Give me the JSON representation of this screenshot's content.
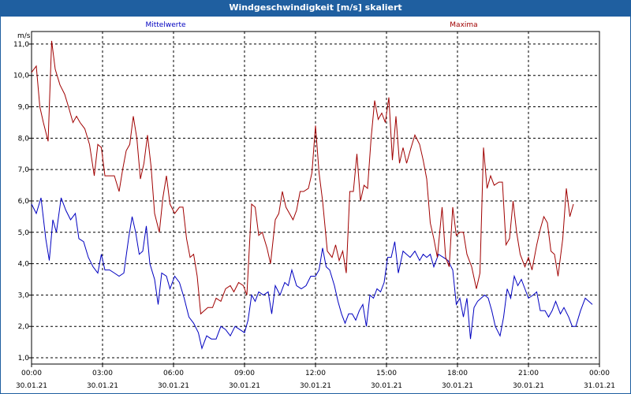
{
  "header": {
    "title": "Windgeschwindigkeit [m/s] skaliert"
  },
  "chart_data": {
    "type": "line",
    "title": "Windgeschwindigkeit [m/s] skaliert",
    "ylabel": "m/s",
    "ylim": [
      0.8,
      11.4
    ],
    "xlim": [
      0,
      24
    ],
    "grid": true,
    "colors": {
      "Mittelwerte": "#0000c0",
      "Maxima": "#a00000"
    },
    "yticks": [
      "1,0",
      "2,0",
      "3,0",
      "4,0",
      "5,0",
      "6,0",
      "7,0",
      "8,0",
      "9,0",
      "10,0",
      "11,0"
    ],
    "xticks": [
      {
        "time": "00:00",
        "date": "30.01.21"
      },
      {
        "time": "03:00",
        "date": "30.01.21"
      },
      {
        "time": "06:00",
        "date": "30.01.21"
      },
      {
        "time": "09:00",
        "date": "30.01.21"
      },
      {
        "time": "12:00",
        "date": "30.01.21"
      },
      {
        "time": "15:00",
        "date": "30.01.21"
      },
      {
        "time": "18:00",
        "date": "30.01.21"
      },
      {
        "time": "21:00",
        "date": "30.01.21"
      },
      {
        "time": "00:00",
        "date": "31.01.21"
      }
    ],
    "series": [
      {
        "name": "Mittelwerte",
        "points": [
          [
            0,
            5.9
          ],
          [
            0.2,
            5.6
          ],
          [
            0.4,
            6.1
          ],
          [
            0.6,
            4.8
          ],
          [
            0.75,
            4.1
          ],
          [
            0.9,
            5.4
          ],
          [
            1.05,
            5.0
          ],
          [
            1.25,
            6.1
          ],
          [
            1.45,
            5.7
          ],
          [
            1.65,
            5.4
          ],
          [
            1.85,
            5.6
          ],
          [
            2.0,
            4.8
          ],
          [
            2.2,
            4.7
          ],
          [
            2.4,
            4.2
          ],
          [
            2.6,
            3.9
          ],
          [
            2.8,
            3.7
          ],
          [
            2.95,
            4.3
          ],
          [
            3.1,
            3.8
          ],
          [
            3.3,
            3.8
          ],
          [
            3.5,
            3.7
          ],
          [
            3.7,
            3.6
          ],
          [
            3.9,
            3.7
          ],
          [
            4.1,
            4.8
          ],
          [
            4.25,
            5.5
          ],
          [
            4.4,
            5.0
          ],
          [
            4.55,
            4.3
          ],
          [
            4.7,
            4.4
          ],
          [
            4.85,
            5.2
          ],
          [
            5.0,
            4.0
          ],
          [
            5.2,
            3.5
          ],
          [
            5.35,
            2.7
          ],
          [
            5.5,
            3.7
          ],
          [
            5.7,
            3.6
          ],
          [
            5.85,
            3.2
          ],
          [
            6.05,
            3.6
          ],
          [
            6.25,
            3.4
          ],
          [
            6.45,
            2.9
          ],
          [
            6.65,
            2.3
          ],
          [
            6.85,
            2.1
          ],
          [
            7.05,
            1.8
          ],
          [
            7.2,
            1.3
          ],
          [
            7.4,
            1.7
          ],
          [
            7.6,
            1.6
          ],
          [
            7.8,
            1.6
          ],
          [
            8.0,
            2.0
          ],
          [
            8.2,
            1.9
          ],
          [
            8.4,
            1.7
          ],
          [
            8.6,
            2.0
          ],
          [
            8.8,
            1.9
          ],
          [
            9.0,
            1.8
          ],
          [
            9.15,
            2.2
          ],
          [
            9.3,
            3.0
          ],
          [
            9.45,
            2.8
          ],
          [
            9.6,
            3.1
          ],
          [
            9.8,
            3.0
          ],
          [
            10.0,
            3.1
          ],
          [
            10.15,
            2.4
          ],
          [
            10.3,
            3.3
          ],
          [
            10.5,
            3.0
          ],
          [
            10.7,
            3.4
          ],
          [
            10.85,
            3.3
          ],
          [
            11.0,
            3.8
          ],
          [
            11.2,
            3.3
          ],
          [
            11.4,
            3.2
          ],
          [
            11.6,
            3.3
          ],
          [
            11.8,
            3.6
          ],
          [
            12.0,
            3.6
          ],
          [
            12.15,
            3.8
          ],
          [
            12.3,
            4.5
          ],
          [
            12.45,
            3.9
          ],
          [
            12.6,
            3.8
          ],
          [
            12.8,
            3.3
          ],
          [
            12.95,
            2.8
          ],
          [
            13.1,
            2.4
          ],
          [
            13.25,
            2.1
          ],
          [
            13.4,
            2.4
          ],
          [
            13.55,
            2.4
          ],
          [
            13.7,
            2.2
          ],
          [
            13.85,
            2.5
          ],
          [
            14.0,
            2.7
          ],
          [
            14.15,
            2.0
          ],
          [
            14.3,
            3.0
          ],
          [
            14.45,
            2.9
          ],
          [
            14.6,
            3.2
          ],
          [
            14.75,
            3.1
          ],
          [
            14.9,
            3.4
          ],
          [
            15.05,
            4.2
          ],
          [
            15.2,
            4.2
          ],
          [
            15.35,
            4.7
          ],
          [
            15.5,
            3.7
          ],
          [
            15.7,
            4.4
          ],
          [
            15.85,
            4.3
          ],
          [
            16.0,
            4.2
          ],
          [
            16.2,
            4.4
          ],
          [
            16.4,
            4.1
          ],
          [
            16.55,
            4.3
          ],
          [
            16.7,
            4.2
          ],
          [
            16.85,
            4.3
          ],
          [
            17.0,
            3.9
          ],
          [
            17.2,
            4.3
          ],
          [
            17.4,
            4.2
          ],
          [
            17.6,
            4.1
          ],
          [
            17.8,
            3.8
          ],
          [
            17.95,
            2.7
          ],
          [
            18.1,
            2.9
          ],
          [
            18.25,
            2.3
          ],
          [
            18.4,
            2.9
          ],
          [
            18.55,
            1.6
          ],
          [
            18.7,
            2.6
          ],
          [
            18.85,
            2.8
          ],
          [
            19.0,
            2.9
          ],
          [
            19.15,
            3.0
          ],
          [
            19.3,
            2.9
          ],
          [
            19.45,
            2.5
          ],
          [
            19.6,
            2.0
          ],
          [
            19.8,
            1.7
          ],
          [
            19.95,
            2.3
          ],
          [
            20.1,
            3.2
          ],
          [
            20.25,
            2.9
          ],
          [
            20.4,
            3.6
          ],
          [
            20.55,
            3.3
          ],
          [
            20.7,
            3.5
          ],
          [
            20.85,
            3.2
          ],
          [
            21.0,
            2.9
          ],
          [
            21.2,
            3.0
          ],
          [
            21.35,
            3.1
          ],
          [
            21.5,
            2.5
          ],
          [
            21.7,
            2.5
          ],
          [
            21.85,
            2.3
          ],
          [
            22.0,
            2.5
          ],
          [
            22.15,
            2.8
          ],
          [
            22.35,
            2.4
          ],
          [
            22.5,
            2.6
          ],
          [
            22.7,
            2.3
          ],
          [
            22.85,
            2.0
          ],
          [
            23.0,
            2.0
          ],
          [
            23.2,
            2.5
          ],
          [
            23.4,
            2.9
          ],
          [
            23.55,
            2.8
          ],
          [
            23.7,
            2.7
          ]
        ]
      },
      {
        "name": "Maxima",
        "points": [
          [
            0,
            10.1
          ],
          [
            0.2,
            10.3
          ],
          [
            0.35,
            9.0
          ],
          [
            0.5,
            8.5
          ],
          [
            0.7,
            7.9
          ],
          [
            0.85,
            11.1
          ],
          [
            1.0,
            10.2
          ],
          [
            1.2,
            9.7
          ],
          [
            1.4,
            9.4
          ],
          [
            1.6,
            8.9
          ],
          [
            1.75,
            8.5
          ],
          [
            1.9,
            8.7
          ],
          [
            2.05,
            8.5
          ],
          [
            2.25,
            8.3
          ],
          [
            2.45,
            7.8
          ],
          [
            2.65,
            6.8
          ],
          [
            2.8,
            7.8
          ],
          [
            2.95,
            7.7
          ],
          [
            3.1,
            6.8
          ],
          [
            3.3,
            6.8
          ],
          [
            3.5,
            6.8
          ],
          [
            3.7,
            6.3
          ],
          [
            3.85,
            7.0
          ],
          [
            4.0,
            7.6
          ],
          [
            4.15,
            7.8
          ],
          [
            4.3,
            8.7
          ],
          [
            4.45,
            8.0
          ],
          [
            4.6,
            6.7
          ],
          [
            4.75,
            7.2
          ],
          [
            4.9,
            8.1
          ],
          [
            5.05,
            7.1
          ],
          [
            5.2,
            5.6
          ],
          [
            5.4,
            5.0
          ],
          [
            5.55,
            6.1
          ],
          [
            5.7,
            6.8
          ],
          [
            5.85,
            5.9
          ],
          [
            6.05,
            5.6
          ],
          [
            6.25,
            5.8
          ],
          [
            6.4,
            5.8
          ],
          [
            6.55,
            4.8
          ],
          [
            6.7,
            4.2
          ],
          [
            6.85,
            4.3
          ],
          [
            7.0,
            3.6
          ],
          [
            7.15,
            2.4
          ],
          [
            7.3,
            2.5
          ],
          [
            7.45,
            2.6
          ],
          [
            7.65,
            2.6
          ],
          [
            7.8,
            2.9
          ],
          [
            8.0,
            2.8
          ],
          [
            8.2,
            3.2
          ],
          [
            8.4,
            3.3
          ],
          [
            8.55,
            3.1
          ],
          [
            8.75,
            3.4
          ],
          [
            8.95,
            3.3
          ],
          [
            9.1,
            3.0
          ],
          [
            9.3,
            5.9
          ],
          [
            9.45,
            5.8
          ],
          [
            9.6,
            4.9
          ],
          [
            9.75,
            5.0
          ],
          [
            9.95,
            4.5
          ],
          [
            10.1,
            4.0
          ],
          [
            10.3,
            5.4
          ],
          [
            10.45,
            5.6
          ],
          [
            10.6,
            6.3
          ],
          [
            10.75,
            5.8
          ],
          [
            10.9,
            5.6
          ],
          [
            11.05,
            5.4
          ],
          [
            11.2,
            5.7
          ],
          [
            11.35,
            6.3
          ],
          [
            11.5,
            6.3
          ],
          [
            11.7,
            6.4
          ],
          [
            11.85,
            6.9
          ],
          [
            12.0,
            8.4
          ],
          [
            12.15,
            6.9
          ],
          [
            12.3,
            6.0
          ],
          [
            12.5,
            4.4
          ],
          [
            12.7,
            4.2
          ],
          [
            12.85,
            4.6
          ],
          [
            13.0,
            4.1
          ],
          [
            13.15,
            4.4
          ],
          [
            13.3,
            3.7
          ],
          [
            13.45,
            6.3
          ],
          [
            13.6,
            6.3
          ],
          [
            13.75,
            7.5
          ],
          [
            13.9,
            6.0
          ],
          [
            14.05,
            6.5
          ],
          [
            14.2,
            6.4
          ],
          [
            14.35,
            8.0
          ],
          [
            14.5,
            9.2
          ],
          [
            14.65,
            8.6
          ],
          [
            14.8,
            8.8
          ],
          [
            14.95,
            8.5
          ],
          [
            15.1,
            9.3
          ],
          [
            15.25,
            7.3
          ],
          [
            15.4,
            8.7
          ],
          [
            15.55,
            7.2
          ],
          [
            15.7,
            7.7
          ],
          [
            15.85,
            7.2
          ],
          [
            16.0,
            7.6
          ],
          [
            16.2,
            8.1
          ],
          [
            16.4,
            7.8
          ],
          [
            16.55,
            7.3
          ],
          [
            16.7,
            6.7
          ],
          [
            16.85,
            5.3
          ],
          [
            17.0,
            4.8
          ],
          [
            17.15,
            4.2
          ],
          [
            17.35,
            5.8
          ],
          [
            17.5,
            4.2
          ],
          [
            17.65,
            3.9
          ],
          [
            17.8,
            5.8
          ],
          [
            17.95,
            4.9
          ],
          [
            18.1,
            5.0
          ],
          [
            18.25,
            5.0
          ],
          [
            18.4,
            4.3
          ],
          [
            18.6,
            3.9
          ],
          [
            18.8,
            3.2
          ],
          [
            18.95,
            3.7
          ],
          [
            19.1,
            7.7
          ],
          [
            19.25,
            6.4
          ],
          [
            19.4,
            6.8
          ],
          [
            19.55,
            6.5
          ],
          [
            19.75,
            6.6
          ],
          [
            19.9,
            6.6
          ],
          [
            20.05,
            4.6
          ],
          [
            20.2,
            4.8
          ],
          [
            20.35,
            6.0
          ],
          [
            20.5,
            5.0
          ],
          [
            20.65,
            4.3
          ],
          [
            20.85,
            3.9
          ],
          [
            21.0,
            4.2
          ],
          [
            21.15,
            3.8
          ],
          [
            21.35,
            4.6
          ],
          [
            21.5,
            5.1
          ],
          [
            21.65,
            5.5
          ],
          [
            21.8,
            5.3
          ],
          [
            21.95,
            4.4
          ],
          [
            22.1,
            4.3
          ],
          [
            22.25,
            3.6
          ],
          [
            22.45,
            4.8
          ],
          [
            22.6,
            6.4
          ],
          [
            22.75,
            5.5
          ],
          [
            22.9,
            5.9
          ]
        ]
      }
    ]
  }
}
